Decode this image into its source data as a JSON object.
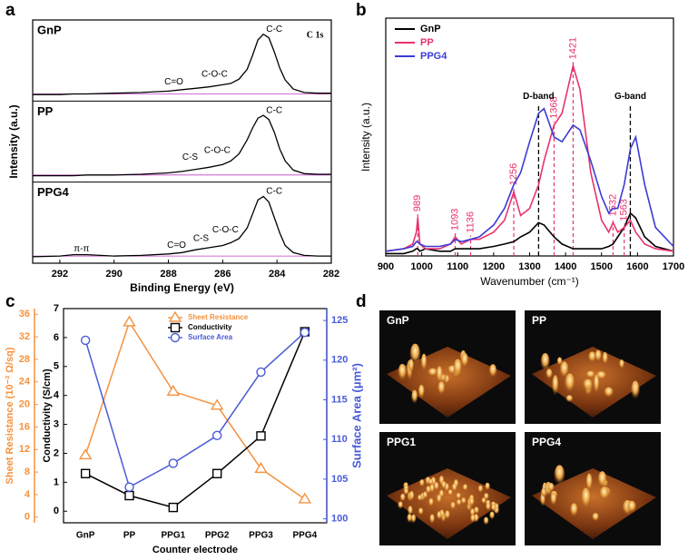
{
  "panel_labels": [
    "a",
    "b",
    "c",
    "d"
  ],
  "chart_data": [
    {
      "type": "stacked-line",
      "xlabel": "Binding Energy (eV)",
      "ylabel": "Intensity (a.u.)",
      "xlim": [
        293,
        282
      ],
      "xticks": [
        292,
        290,
        288,
        286,
        284,
        282
      ],
      "ylim": [
        0,
        1
      ],
      "x": [
        293,
        292,
        291.5,
        291,
        290,
        289,
        288,
        287.5,
        287,
        286.5,
        286,
        285.7,
        285.4,
        285.1,
        284.9,
        284.7,
        284.5,
        284.3,
        284.1,
        283.9,
        283.7,
        283.4,
        283,
        282.5,
        282
      ],
      "panels": [
        {
          "name": "GnP",
          "color": "#000000",
          "values": [
            0.04,
            0.04,
            0.05,
            0.05,
            0.06,
            0.07,
            0.09,
            0.11,
            0.13,
            0.15,
            0.18,
            0.2,
            0.26,
            0.4,
            0.6,
            0.82,
            0.9,
            0.85,
            0.65,
            0.42,
            0.25,
            0.12,
            0.07,
            0.06,
            0.06
          ],
          "annotations": [
            {
              "text": "C 1s",
              "x": 282.6,
              "y": 0.88
            },
            {
              "text": "C=O",
              "x": 287.8,
              "y": 0.22
            },
            {
              "text": "C-O-C",
              "x": 286.3,
              "y": 0.33
            },
            {
              "text": "C-C",
              "x": 284.1,
              "y": 0.97
            }
          ]
        },
        {
          "name": "PP",
          "color": "#000000",
          "values": [
            0.04,
            0.04,
            0.04,
            0.05,
            0.05,
            0.06,
            0.08,
            0.1,
            0.13,
            0.16,
            0.2,
            0.25,
            0.35,
            0.55,
            0.72,
            0.86,
            0.9,
            0.84,
            0.66,
            0.42,
            0.25,
            0.12,
            0.07,
            0.06,
            0.06
          ],
          "annotations": [
            {
              "text": "C-C",
              "x": 284.1,
              "y": 0.97
            },
            {
              "text": "C-O-C",
              "x": 286.2,
              "y": 0.4
            },
            {
              "text": "C-S",
              "x": 287.2,
              "y": 0.3
            }
          ]
        },
        {
          "name": "PPG4",
          "color": "#000000",
          "values": [
            0.04,
            0.05,
            0.07,
            0.07,
            0.05,
            0.06,
            0.08,
            0.1,
            0.14,
            0.17,
            0.2,
            0.24,
            0.3,
            0.45,
            0.65,
            0.85,
            0.9,
            0.82,
            0.6,
            0.38,
            0.2,
            0.1,
            0.06,
            0.05,
            0.05
          ],
          "annotations": [
            {
              "text": "C-C",
              "x": 284.1,
              "y": 0.97
            },
            {
              "text": "C-O-C",
              "x": 285.9,
              "y": 0.42
            },
            {
              "text": "C-S",
              "x": 286.8,
              "y": 0.3
            },
            {
              "text": "C=O",
              "x": 287.7,
              "y": 0.2
            },
            {
              "text": "π-π",
              "x": 291.2,
              "y": 0.15
            }
          ]
        }
      ]
    },
    {
      "type": "line",
      "xlabel": "Wavenumber (cm⁻¹)",
      "ylabel": "Intensity (a.u.)",
      "xlim": [
        900,
        1700
      ],
      "xticks": [
        900,
        1000,
        1100,
        1200,
        1300,
        1400,
        1500,
        1600,
        1700
      ],
      "ylim": [
        0,
        1
      ],
      "legend": "upper left",
      "x": [
        900,
        950,
        975,
        985,
        989,
        995,
        1010,
        1050,
        1080,
        1093,
        1110,
        1136,
        1160,
        1200,
        1230,
        1256,
        1275,
        1300,
        1325,
        1340,
        1368,
        1390,
        1421,
        1440,
        1470,
        1500,
        1520,
        1532,
        1545,
        1563,
        1580,
        1595,
        1620,
        1650,
        1700
      ],
      "series": [
        {
          "name": "GnP",
          "color": "#000000",
          "values": [
            0.01,
            0.01,
            0.02,
            0.03,
            0.03,
            0.02,
            0.03,
            0.02,
            0.02,
            0.03,
            0.03,
            0.03,
            0.03,
            0.04,
            0.05,
            0.06,
            0.08,
            0.1,
            0.14,
            0.13,
            0.08,
            0.05,
            0.03,
            0.03,
            0.03,
            0.03,
            0.04,
            0.05,
            0.08,
            0.12,
            0.18,
            0.16,
            0.08,
            0.04,
            0.02
          ]
        },
        {
          "name": "PP",
          "color": "#e8336a",
          "values": [
            0.02,
            0.03,
            0.05,
            0.1,
            0.16,
            0.05,
            0.03,
            0.03,
            0.05,
            0.08,
            0.05,
            0.07,
            0.07,
            0.1,
            0.15,
            0.27,
            0.17,
            0.2,
            0.3,
            0.4,
            0.55,
            0.6,
            0.8,
            0.7,
            0.35,
            0.15,
            0.1,
            0.14,
            0.1,
            0.12,
            0.15,
            0.1,
            0.05,
            0.03,
            0.02
          ]
        },
        {
          "name": "PPG4",
          "color": "#3b3bd6",
          "values": [
            0.02,
            0.03,
            0.04,
            0.06,
            0.06,
            0.05,
            0.04,
            0.04,
            0.05,
            0.07,
            0.06,
            0.07,
            0.08,
            0.13,
            0.2,
            0.3,
            0.35,
            0.48,
            0.6,
            0.62,
            0.5,
            0.48,
            0.55,
            0.53,
            0.4,
            0.25,
            0.18,
            0.2,
            0.2,
            0.3,
            0.45,
            0.5,
            0.3,
            0.12,
            0.04
          ]
        }
      ],
      "peaks": [
        989,
        1093,
        1136,
        1256,
        1368,
        1421,
        1532,
        1563
      ],
      "peak_color": "#e8336a",
      "bands": [
        {
          "label": "D-band",
          "x": 1325
        },
        {
          "label": "G-band",
          "x": 1580
        }
      ]
    },
    {
      "type": "multi-axis",
      "xlabel": "Counter electrode",
      "categories": [
        "GnP",
        "PP",
        "PPG1",
        "PPG2",
        "PPG3",
        "PPG4"
      ],
      "legend": "upper center",
      "ylabel": "Conductivity (S/cm)",
      "ylim": [
        -0.4,
        7
      ],
      "yticks": [
        0,
        1,
        2,
        3,
        4,
        5,
        6,
        7
      ],
      "y2label": "Surface Area (μm²)",
      "y2lim": [
        99.5,
        126.5
      ],
      "y2ticks": [
        100,
        105,
        110,
        115,
        120,
        125
      ],
      "y3label": "Sheet Resistance (10⁻³ Ω/sq)",
      "y3lim": [
        -1,
        37
      ],
      "y3ticks": [
        0,
        4,
        8,
        12,
        16,
        20,
        24,
        28,
        32,
        36
      ],
      "series": [
        {
          "name": "Sheet Resistance",
          "color": "#f5923e",
          "marker": "triangle",
          "axis": "y3",
          "values": [
            11,
            34.6,
            22.3,
            19.8,
            8.6,
            3.2
          ]
        },
        {
          "name": "Conductivity",
          "color": "#000000",
          "marker": "square",
          "axis": "y",
          "values": [
            1.3,
            0.54,
            0.13,
            1.3,
            2.6,
            6.2
          ]
        },
        {
          "name": "Surface Area",
          "color": "#4a5bd6",
          "marker": "circle",
          "axis": "y2",
          "values": [
            122.5,
            104,
            107,
            110.5,
            118.5,
            123.5
          ]
        }
      ]
    }
  ],
  "afm_images": {
    "labels": [
      "GnP",
      "PP",
      "PPG1",
      "PPG4"
    ]
  }
}
